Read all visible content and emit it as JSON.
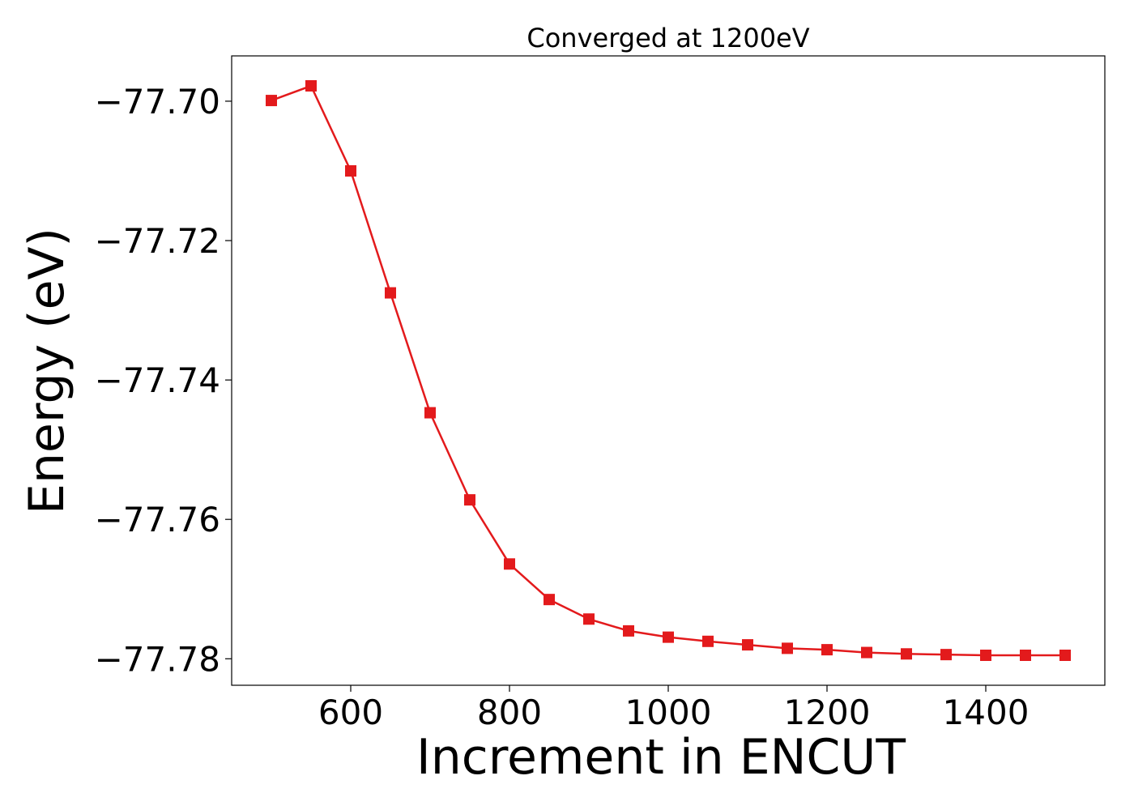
{
  "chart_data": {
    "type": "line",
    "title": "Converged at 1200eV",
    "xlabel": "Increment in ENCUT",
    "ylabel": "Energy (eV)",
    "xlim": [
      450,
      1550
    ],
    "ylim": [
      -77.7838,
      -77.6935
    ],
    "xticks": [
      600,
      800,
      1000,
      1200,
      1400
    ],
    "xtick_labels": [
      "600",
      "800",
      "1000",
      "1200",
      "1400"
    ],
    "yticks": [
      -77.7,
      -77.72,
      -77.74,
      -77.76,
      -77.78
    ],
    "ytick_labels": [
      "−77.70",
      "−77.72",
      "−77.74",
      "−77.76",
      "−77.78"
    ],
    "grid": false,
    "series": [
      {
        "color": "#e31a1c",
        "marker": "square",
        "x": [
          500,
          550,
          600,
          650,
          700,
          750,
          800,
          850,
          900,
          950,
          1000,
          1050,
          1100,
          1150,
          1200,
          1250,
          1300,
          1350,
          1400,
          1450,
          1500
        ],
        "y": [
          -77.6999,
          -77.6978,
          -77.71,
          -77.7275,
          -77.7447,
          -77.7572,
          -77.7664,
          -77.7715,
          -77.7743,
          -77.776,
          -77.7769,
          -77.7775,
          -77.778,
          -77.7785,
          -77.7787,
          -77.7791,
          -77.7793,
          -77.7794,
          -77.7795,
          -77.7795,
          -77.7795
        ]
      }
    ]
  }
}
